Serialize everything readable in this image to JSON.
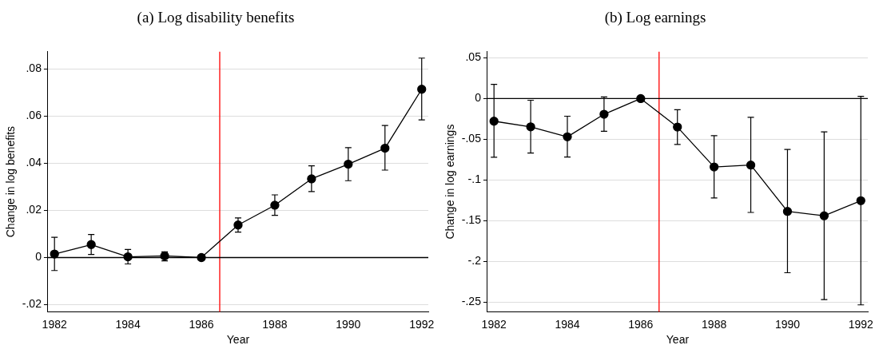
{
  "chart_data": [
    {
      "type": "line",
      "title": "(a) Log disability benefits",
      "xlabel": "Year",
      "ylabel": "Change in log benefits",
      "x": [
        1982,
        1983,
        1984,
        1985,
        1986,
        1987,
        1988,
        1989,
        1990,
        1991,
        1992
      ],
      "series": [
        {
          "color": "#000000",
          "values": [
            0.0015,
            0.0055,
            0.0003,
            0.0007,
            0,
            0.0138,
            0.0222,
            0.0334,
            0.0396,
            0.0464,
            0.0714
          ],
          "errors": [
            [
              -0.0055,
              0.0086
            ],
            [
              0.0013,
              0.0098
            ],
            [
              -0.0027,
              0.0034
            ],
            [
              -0.0014,
              0.0024
            ],
            null,
            [
              0.0108,
              0.0168
            ],
            [
              0.0179,
              0.0266
            ],
            [
              0.028,
              0.0389
            ],
            [
              0.0326,
              0.0466
            ],
            [
              0.0371,
              0.056
            ],
            [
              0.0584,
              0.0846
            ]
          ]
        }
      ],
      "xlim": [
        1981.82,
        1992.18
      ],
      "xticks": [
        1982,
        1984,
        1986,
        1988,
        1990,
        1992
      ],
      "ylim": [
        -0.023,
        0.0873
      ],
      "yticks": [
        {
          "value": -0.02,
          "label": "-.02"
        },
        0,
        {
          "value": 0.02,
          "label": ".02"
        },
        {
          "value": 0.04,
          "label": ".04"
        },
        {
          "value": 0.06,
          "label": ".06"
        },
        {
          "value": 0.08,
          "label": ".08"
        }
      ],
      "ref_lines": [
        {
          "axis": "x",
          "value": 1986.5,
          "color": "#ff0000"
        },
        {
          "axis": "y",
          "value": 0,
          "color": "#000000"
        }
      ],
      "grid": "y",
      "legend": false,
      "marker": "circle",
      "line_style": "solid"
    },
    {
      "type": "line",
      "title": "(b) Log earnings",
      "xlabel": "Year",
      "ylabel": "Change in log earnings",
      "x": [
        1982,
        1983,
        1984,
        1985,
        1986,
        1987,
        1988,
        1989,
        1990,
        1991,
        1992
      ],
      "series": [
        {
          "color": "#000000",
          "values": [
            -0.0277,
            -0.0346,
            -0.0469,
            -0.0192,
            0,
            -0.0349,
            -0.0839,
            -0.0815,
            -0.1384,
            -0.1438,
            -0.1253
          ],
          "errors": [
            [
              -0.0719,
              0.0175
            ],
            [
              -0.0668,
              -0.002
            ],
            [
              -0.0716,
              -0.0216
            ],
            [
              -0.0401,
              0.002
            ],
            null,
            [
              -0.0562,
              -0.0137
            ],
            [
              -0.1219,
              -0.0455
            ],
            [
              -0.1397,
              -0.0229
            ],
            [
              -0.2137,
              -0.0623
            ],
            [
              -0.2466,
              -0.0408
            ],
            [
              -0.2531,
              0.0027
            ]
          ]
        }
      ],
      "xlim": [
        1981.82,
        1992.19
      ],
      "xticks": [
        1982,
        1984,
        1986,
        1988,
        1990,
        1992
      ],
      "ylim": [
        -0.2616,
        0.0575
      ],
      "yticks": [
        {
          "value": -0.25,
          "label": "-.25"
        },
        {
          "value": -0.2,
          "label": "-.2"
        },
        {
          "value": -0.15,
          "label": "-.15"
        },
        {
          "value": -0.1,
          "label": "-.1"
        },
        {
          "value": -0.05,
          "label": "-.05"
        },
        0,
        {
          "value": 0.05,
          "label": ".05"
        }
      ],
      "ref_lines": [
        {
          "axis": "x",
          "value": 1986.5,
          "color": "#ff0000"
        },
        {
          "axis": "y",
          "value": 0,
          "color": "#000000"
        }
      ],
      "grid": "y",
      "legend": false,
      "marker": "circle",
      "line_style": "solid"
    }
  ]
}
